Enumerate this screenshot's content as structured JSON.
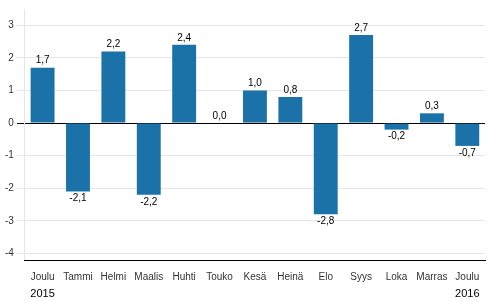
{
  "chart_data": {
    "type": "bar",
    "categories": [
      "Joulu",
      "Tammi",
      "Helmi",
      "Maalis",
      "Huhti",
      "Touko",
      "Kesä",
      "Heinä",
      "Elo",
      "Syys",
      "Loka",
      "Marras",
      "Joulu"
    ],
    "values": [
      1.7,
      -2.1,
      2.2,
      -2.2,
      2.4,
      0.0,
      1.0,
      0.8,
      -2.8,
      2.7,
      -0.2,
      0.3,
      -0.7
    ],
    "value_labels": [
      "1,7",
      "-2,1",
      "2,2",
      "-2,2",
      "2,4",
      "0,0",
      "1,0",
      "0,8",
      "-2,8",
      "2,7",
      "-0,2",
      "0,3",
      "-0,7"
    ],
    "data_labels": true,
    "color": "#1a72a8",
    "ylim": [
      -4.2,
      3.5
    ],
    "yticks": [
      -4,
      -3,
      -2,
      -1,
      0,
      1,
      2,
      3
    ],
    "grid": true,
    "annotations": [
      {
        "text": "2015",
        "x": 0
      },
      {
        "text": "2016",
        "x": 12
      }
    ]
  }
}
